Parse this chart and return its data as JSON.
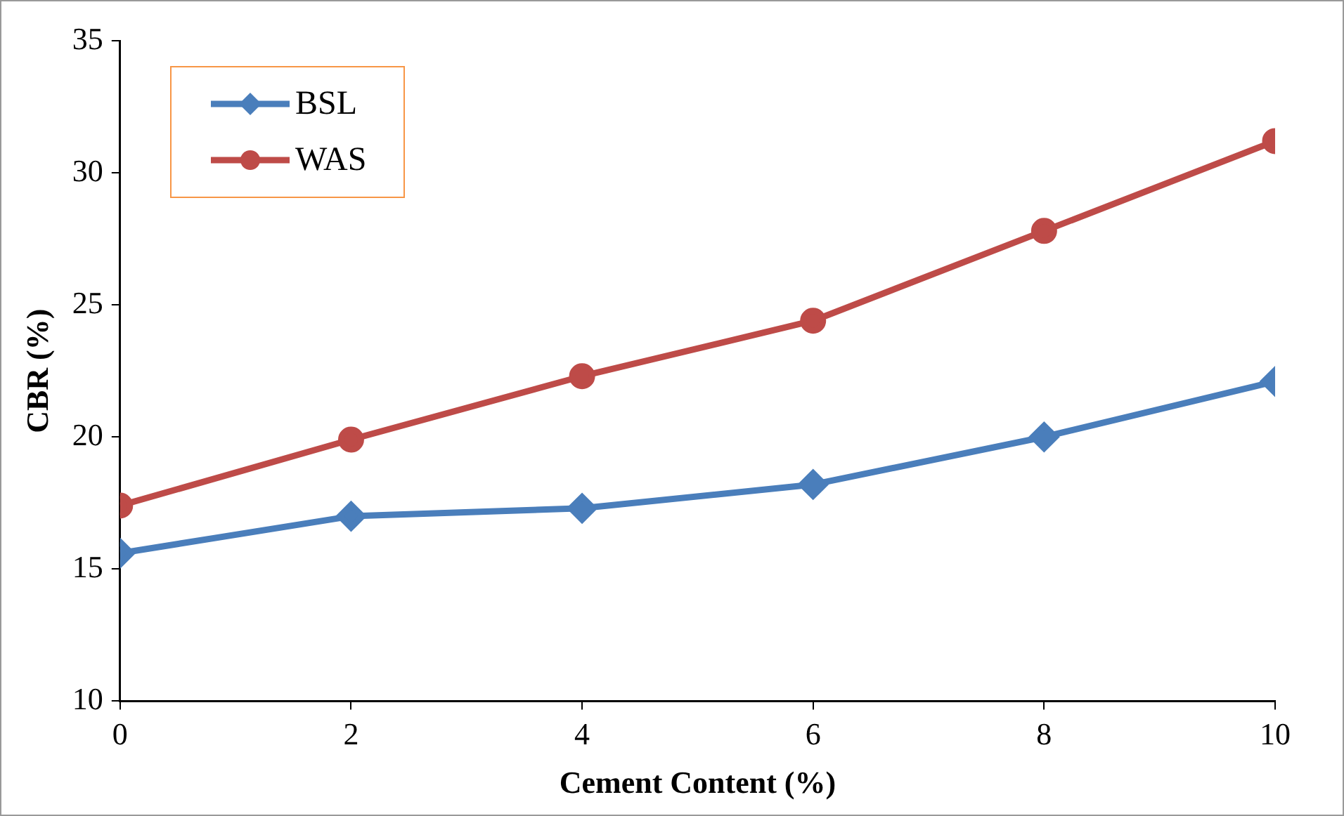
{
  "chart_data": {
    "type": "line",
    "xlabel": "Cement Content (%)",
    "ylabel": "CBR (%)",
    "x": [
      0,
      2,
      4,
      6,
      8,
      10
    ],
    "series": [
      {
        "name": "BSL",
        "color": "#4a7ebb",
        "values": [
          15.6,
          17.0,
          17.3,
          18.2,
          20.0,
          22.1
        ],
        "marker": "diamond"
      },
      {
        "name": "WAS",
        "color": "#be4b48",
        "values": [
          17.4,
          19.9,
          22.3,
          24.4,
          27.8,
          31.2
        ],
        "marker": "circle"
      }
    ],
    "xlim": [
      0,
      10
    ],
    "xticks": [
      0,
      2,
      4,
      6,
      8,
      10
    ],
    "ylim": [
      10,
      35
    ],
    "yticks": [
      10,
      15,
      20,
      25,
      30,
      35
    ],
    "grid": false,
    "legend": "top left"
  }
}
